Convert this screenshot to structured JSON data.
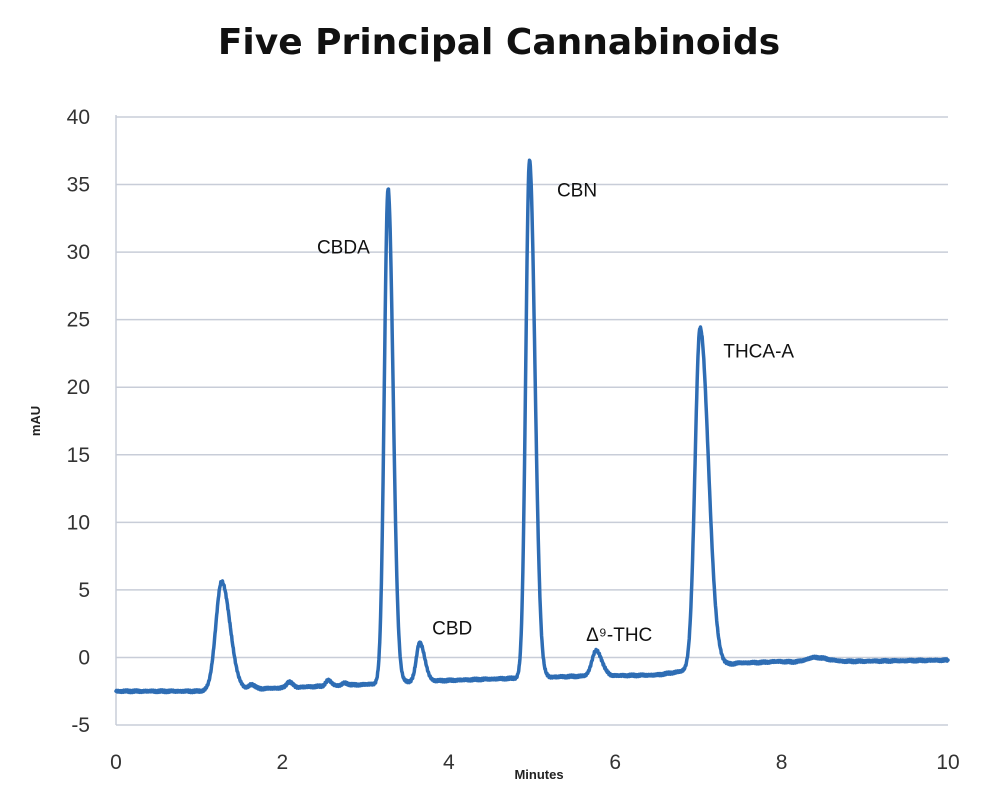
{
  "chart_data": {
    "type": "line",
    "title": "Five Principal Cannabinoids",
    "xlabel": "Minutes",
    "ylabel": "mAU",
    "xlim": [
      0,
      10
    ],
    "ylim": [
      -5,
      40
    ],
    "xticks": [
      "0",
      "2",
      "4",
      "6",
      "8",
      "10"
    ],
    "yticks": [
      "-5",
      "0",
      "5",
      "10",
      "15",
      "20",
      "25",
      "30",
      "35",
      "40"
    ],
    "grid": true,
    "line_color": "#2e6db4",
    "baseline": [
      [
        0,
        -2.5
      ],
      [
        1.0,
        -2.5
      ],
      [
        3.0,
        -2.0
      ],
      [
        3.5,
        -1.8
      ],
      [
        5.5,
        -1.4
      ],
      [
        6.5,
        -1.3
      ],
      [
        7.5,
        -0.4
      ],
      [
        10,
        -0.2
      ]
    ],
    "peaks": [
      {
        "x": 1.27,
        "height": 5.6,
        "left_width": 0.07,
        "right_width": 0.1
      },
      {
        "x": 1.63,
        "height": -2.0,
        "left_width": 0.03,
        "right_width": 0.04
      },
      {
        "x": 2.08,
        "height": -1.8,
        "left_width": 0.03,
        "right_width": 0.04
      },
      {
        "x": 2.55,
        "height": -1.7,
        "left_width": 0.03,
        "right_width": 0.04
      },
      {
        "x": 2.75,
        "height": -1.9,
        "left_width": 0.03,
        "right_width": 0.04
      },
      {
        "x": 3.27,
        "height": 34.7,
        "left_width": 0.045,
        "right_width": 0.06
      },
      {
        "x": 3.65,
        "height": 1.1,
        "left_width": 0.04,
        "right_width": 0.06
      },
      {
        "x": 4.97,
        "height": 36.8,
        "left_width": 0.045,
        "right_width": 0.065
      },
      {
        "x": 5.77,
        "height": 0.5,
        "left_width": 0.05,
        "right_width": 0.07
      },
      {
        "x": 7.02,
        "height": 24.4,
        "left_width": 0.06,
        "right_width": 0.1
      },
      {
        "x": 7.95,
        "height": -0.3,
        "left_width": 0.1,
        "right_width": 0.1
      },
      {
        "x": 8.4,
        "height": 0.0,
        "left_width": 0.1,
        "right_width": 0.15
      }
    ],
    "annotations": [
      {
        "text": "CBDA",
        "x": 3.05,
        "y": 29.9,
        "anchor": "end"
      },
      {
        "text": "CBD",
        "x": 3.8,
        "y": 1.7,
        "anchor": "start"
      },
      {
        "text": "CBN",
        "x": 5.3,
        "y": 34.1,
        "anchor": "start"
      },
      {
        "text": "Δ⁹-THC",
        "x": 5.65,
        "y": 1.2,
        "anchor": "start"
      },
      {
        "text": "THCA-A",
        "x": 7.3,
        "y": 22.2,
        "anchor": "start"
      }
    ]
  }
}
